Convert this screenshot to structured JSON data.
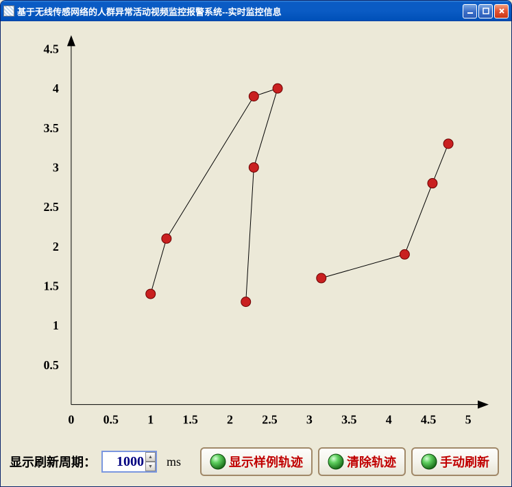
{
  "window": {
    "title": "基于无线传感网络的人群异常活动视频监控报警系统--实时监控信息"
  },
  "chart": {
    "type": "line",
    "background_color": "#ece9d8",
    "axis_color": "#000000",
    "xlim": [
      0,
      5
    ],
    "ylim": [
      0,
      4.5
    ],
    "xtick_step": 0.5,
    "ytick_step": 0.5,
    "x_ticks": [
      "0",
      "0.5",
      "1",
      "1.5",
      "2",
      "2.5",
      "3",
      "3.5",
      "4",
      "4.5",
      "5"
    ],
    "y_ticks": [
      "0.5",
      "1",
      "1.5",
      "2",
      "2.5",
      "3",
      "3.5",
      "4",
      "4.5"
    ],
    "tick_fontsize": 18,
    "marker_radius": 7,
    "marker_fill": "#c92020",
    "marker_stroke": "#6a0000",
    "line_color": "#000000",
    "line_width": 1,
    "series_a": {
      "points": [
        [
          1.0,
          1.4
        ],
        [
          1.2,
          2.1
        ],
        [
          2.3,
          3.9
        ],
        [
          2.6,
          4.0
        ],
        [
          2.3,
          3.0
        ],
        [
          2.2,
          1.3
        ]
      ]
    },
    "series_b": {
      "points": [
        [
          3.15,
          1.6
        ],
        [
          4.2,
          1.9
        ],
        [
          4.55,
          2.8
        ],
        [
          4.75,
          3.3
        ]
      ]
    }
  },
  "controls": {
    "refresh_label": "显示刷新周期：",
    "refresh_value": "1000",
    "refresh_unit": "ms",
    "show_sample_label": "显示样例轨迹",
    "clear_label": "清除轨迹",
    "manual_refresh_label": "手动刷新",
    "orb_colors": {
      "outer": "#1a6e1a",
      "inner": "#5fd05f",
      "highlight": "#d8ffd8"
    },
    "button_text_color": "#c00000"
  }
}
